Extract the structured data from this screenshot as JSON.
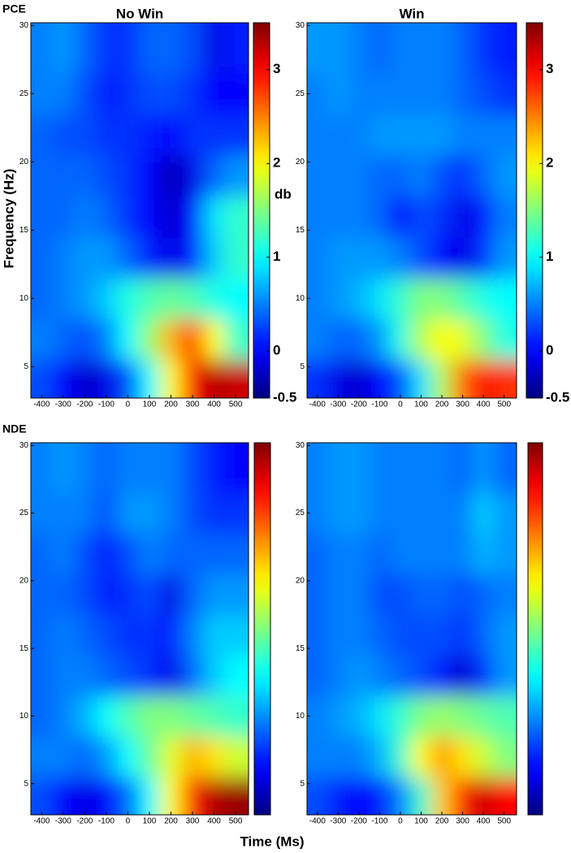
{
  "chart_data": [
    {
      "type": "heatmap",
      "row_label": "PCE",
      "title": "No Win",
      "ylabel": "Frequency (Hz)",
      "colorbar_label": "db",
      "x": [
        -400,
        -300,
        -200,
        -100,
        0,
        100,
        200,
        300,
        400,
        500
      ],
      "y": [
        4,
        7,
        10,
        13,
        16,
        19,
        22,
        25,
        28
      ],
      "values": [
        [
          0.3,
          0.0,
          -0.2,
          -0.1,
          0.3,
          1.0,
          2.0,
          3.0,
          3.3,
          3.2
        ],
        [
          0.5,
          0.4,
          0.3,
          0.5,
          1.0,
          1.6,
          2.3,
          2.8,
          2.0,
          1.2
        ],
        [
          0.4,
          0.5,
          0.6,
          0.8,
          1.1,
          1.3,
          1.4,
          1.3,
          1.1,
          1.0
        ],
        [
          0.4,
          0.5,
          0.6,
          0.6,
          0.4,
          0.1,
          -0.1,
          0.1,
          0.8,
          1.2
        ],
        [
          0.4,
          0.4,
          0.5,
          0.4,
          0.2,
          0.0,
          -0.2,
          0.0,
          0.9,
          1.2
        ],
        [
          0.4,
          0.4,
          0.4,
          0.3,
          0.2,
          0.0,
          -0.3,
          -0.1,
          0.4,
          0.6
        ],
        [
          0.4,
          0.3,
          0.3,
          0.2,
          0.2,
          0.1,
          0.0,
          0.2,
          0.2,
          0.2
        ],
        [
          0.5,
          0.5,
          0.3,
          0.1,
          0.2,
          0.3,
          0.3,
          0.2,
          0.0,
          0.0
        ],
        [
          0.5,
          0.6,
          0.4,
          0.2,
          0.2,
          0.4,
          0.4,
          0.3,
          -0.1,
          0.1
        ]
      ],
      "xlim": [
        -450,
        560
      ],
      "ylim": [
        2.7,
        30.2
      ],
      "xticks": [
        -400,
        -300,
        -200,
        -100,
        0,
        100,
        200,
        300,
        400,
        500
      ],
      "yticks": [
        5,
        10,
        15,
        20,
        25,
        30
      ],
      "clim": [
        -0.5,
        3.5
      ],
      "cticks": [
        -0.5,
        0,
        1,
        2,
        3
      ],
      "colormap": "jet"
    },
    {
      "type": "heatmap",
      "title": "Win",
      "x": [
        -400,
        -300,
        -200,
        -100,
        0,
        100,
        200,
        300,
        400,
        500
      ],
      "y": [
        4,
        7,
        10,
        13,
        16,
        19,
        22,
        25,
        28
      ],
      "values": [
        [
          0.2,
          -0.1,
          -0.2,
          0.0,
          0.3,
          0.9,
          1.7,
          2.6,
          3.0,
          2.8
        ],
        [
          0.5,
          0.4,
          0.4,
          0.6,
          1.1,
          1.7,
          2.0,
          1.9,
          1.5,
          1.1
        ],
        [
          0.5,
          0.6,
          0.7,
          0.9,
          1.2,
          1.5,
          1.5,
          1.3,
          1.1,
          1.0
        ],
        [
          0.5,
          0.6,
          0.6,
          0.6,
          0.5,
          0.3,
          0.0,
          -0.1,
          0.2,
          0.6
        ],
        [
          0.5,
          0.5,
          0.5,
          0.4,
          0.0,
          0.3,
          0.2,
          -0.1,
          0.1,
          0.5
        ],
        [
          0.5,
          0.5,
          0.5,
          0.4,
          0.4,
          0.5,
          0.3,
          0.2,
          0.4,
          0.6
        ],
        [
          0.5,
          0.5,
          0.5,
          0.6,
          0.6,
          0.6,
          0.6,
          0.5,
          0.5,
          0.5
        ],
        [
          0.5,
          0.6,
          0.5,
          0.5,
          0.5,
          0.5,
          0.5,
          0.4,
          0.3,
          0.2
        ],
        [
          0.6,
          0.6,
          0.5,
          0.4,
          0.5,
          0.5,
          0.5,
          0.4,
          0.2,
          0.1
        ]
      ],
      "xlim": [
        -450,
        560
      ],
      "ylim": [
        2.7,
        30.2
      ],
      "xticks": [
        -400,
        -300,
        -200,
        -100,
        0,
        100,
        200,
        300,
        400,
        500
      ],
      "yticks": [
        5,
        10,
        15,
        20,
        25,
        30
      ],
      "clim": [
        -0.5,
        3.5
      ],
      "cticks": [
        -0.5,
        0,
        1,
        2,
        3
      ],
      "colormap": "jet"
    },
    {
      "type": "heatmap",
      "row_label": "NDE",
      "xlabel": "Time (Ms)",
      "x": [
        -400,
        -300,
        -200,
        -100,
        0,
        100,
        200,
        300,
        400,
        500
      ],
      "y": [
        4,
        7,
        10,
        13,
        16,
        19,
        22,
        25,
        28
      ],
      "values": [
        [
          0.3,
          0.0,
          -0.1,
          0.0,
          0.4,
          1.0,
          2.0,
          2.9,
          3.3,
          3.4
        ],
        [
          0.5,
          0.5,
          0.4,
          0.6,
          1.0,
          1.4,
          1.9,
          2.3,
          2.1,
          1.8
        ],
        [
          0.4,
          0.5,
          0.7,
          1.0,
          1.3,
          1.5,
          1.5,
          1.4,
          1.3,
          1.2
        ],
        [
          0.4,
          0.5,
          0.5,
          0.4,
          0.3,
          0.2,
          -0.1,
          0.4,
          0.8,
          1.0
        ],
        [
          0.4,
          0.5,
          0.4,
          0.3,
          0.2,
          0.2,
          0.1,
          0.5,
          0.8,
          0.8
        ],
        [
          0.4,
          0.4,
          0.3,
          0.1,
          0.2,
          0.3,
          -0.1,
          0.4,
          0.6,
          0.6
        ],
        [
          0.4,
          0.5,
          0.3,
          0.1,
          0.3,
          0.5,
          0.4,
          0.4,
          0.4,
          0.4
        ],
        [
          0.5,
          0.5,
          0.5,
          0.3,
          0.6,
          0.6,
          0.5,
          0.3,
          0.2,
          0.2
        ],
        [
          0.5,
          0.6,
          0.5,
          0.4,
          0.5,
          0.5,
          0.5,
          0.3,
          0.1,
          0.0
        ]
      ],
      "xlim": [
        -450,
        560
      ],
      "ylim": [
        2.7,
        30.2
      ],
      "xticks": [
        -400,
        -300,
        -200,
        -100,
        0,
        100,
        200,
        300,
        400,
        500
      ],
      "yticks": [
        5,
        10,
        15,
        20,
        25,
        30
      ],
      "clim": [
        -0.5,
        3.5
      ],
      "colormap": "jet"
    },
    {
      "type": "heatmap",
      "x": [
        -400,
        -300,
        -200,
        -100,
        0,
        100,
        200,
        300,
        400,
        500
      ],
      "y": [
        4,
        7,
        10,
        13,
        16,
        19,
        22,
        25,
        28
      ],
      "values": [
        [
          0.3,
          0.1,
          0.0,
          0.1,
          0.5,
          1.2,
          2.2,
          2.9,
          3.2,
          3.0
        ],
        [
          0.5,
          0.5,
          0.5,
          0.7,
          1.2,
          2.0,
          2.4,
          2.1,
          1.8,
          1.5
        ],
        [
          0.5,
          0.6,
          0.7,
          0.9,
          1.2,
          1.5,
          1.6,
          1.5,
          1.4,
          1.3
        ],
        [
          0.4,
          0.5,
          0.6,
          0.5,
          0.4,
          0.3,
          0.1,
          -0.2,
          0.2,
          0.6
        ],
        [
          0.4,
          0.5,
          0.5,
          0.4,
          0.3,
          0.3,
          0.3,
          0.2,
          0.4,
          0.6
        ],
        [
          0.4,
          0.5,
          0.5,
          0.3,
          0.3,
          0.4,
          0.4,
          0.3,
          0.4,
          0.5
        ],
        [
          0.4,
          0.5,
          0.5,
          0.4,
          0.5,
          0.5,
          0.5,
          0.5,
          0.7,
          0.6
        ],
        [
          0.5,
          0.6,
          0.6,
          0.5,
          0.5,
          0.5,
          0.5,
          0.5,
          0.8,
          0.6
        ],
        [
          0.5,
          0.6,
          0.6,
          0.5,
          0.5,
          0.5,
          0.5,
          0.4,
          0.6,
          0.4
        ]
      ],
      "xlim": [
        -450,
        560
      ],
      "ylim": [
        2.7,
        30.2
      ],
      "xticks": [
        -400,
        -300,
        -200,
        -100,
        0,
        100,
        200,
        300,
        400,
        500
      ],
      "yticks": [
        5,
        10,
        15,
        20,
        25,
        30
      ],
      "clim": [
        -0.5,
        3.5
      ],
      "colormap": "jet"
    }
  ]
}
